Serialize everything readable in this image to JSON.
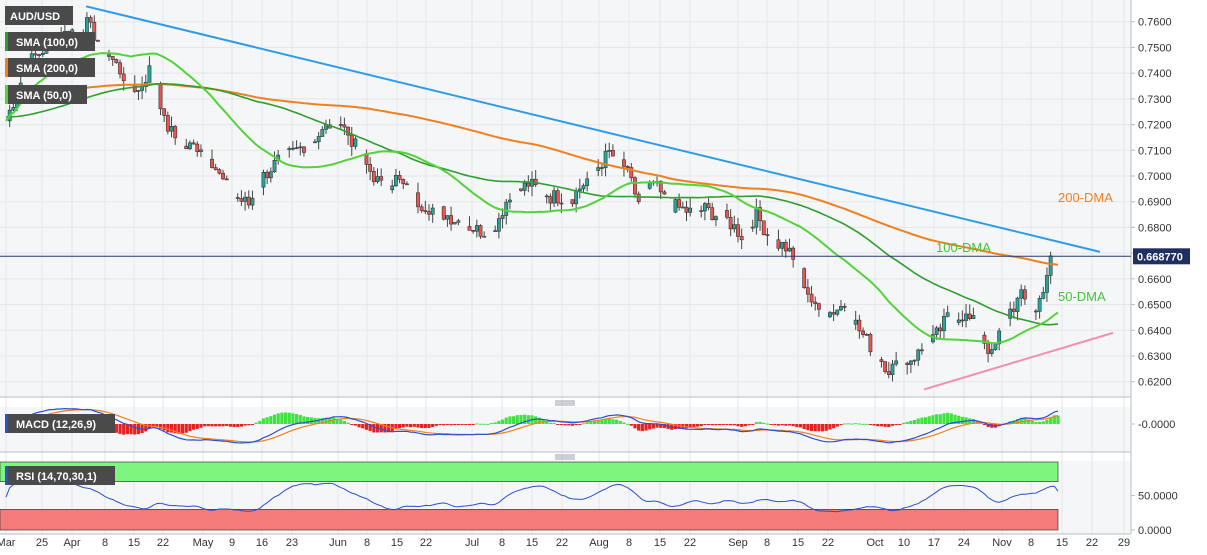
{
  "chart_data": {
    "type": "candlestick",
    "instrument": "AUD/USD",
    "current_price": "0.668770",
    "current_value": 0.66877,
    "x_tick_labels": [
      "Mar",
      "25",
      "Apr",
      "8",
      "15",
      "22",
      "May",
      "9",
      "16",
      "23",
      "Jun",
      "8",
      "15",
      "22",
      "Jul",
      "8",
      "15",
      "22",
      "Aug",
      "8",
      "15",
      "22",
      "Sep",
      "8",
      "15",
      "22",
      "Oct",
      "10",
      "17",
      "24",
      "Nov",
      "8",
      "15",
      "22",
      "29"
    ],
    "price_pane": {
      "ylim": [
        0.616,
        0.7665
      ],
      "y_tick_labels": [
        "0.7600",
        "0.7500",
        "0.7400",
        "0.7300",
        "0.7200",
        "0.7100",
        "0.7000",
        "0.6900",
        "0.6800",
        "0.6700",
        "0.6600",
        "0.6500",
        "0.6400",
        "0.6300",
        "0.6200"
      ],
      "y_ticks": [
        0.76,
        0.75,
        0.74,
        0.73,
        0.72,
        0.71,
        0.7,
        0.69,
        0.68,
        0.67,
        0.66,
        0.65,
        0.64,
        0.63,
        0.62
      ],
      "up_color": "#26a69a",
      "down_color": "#ef5350",
      "indicators": [
        {
          "label": "SMA (100,0)",
          "color": "#2e9e2e"
        },
        {
          "label": "SMA (200,0)",
          "color": "#f07f20"
        },
        {
          "label": "SMA (50,0)",
          "color": "#54d23a"
        }
      ],
      "annotations": [
        {
          "text": "100-DMA",
          "color": "#43c43a"
        },
        {
          "text": "200-DMA",
          "color": "#f07f20"
        },
        {
          "text": "50-DMA",
          "color": "#43c43a"
        }
      ],
      "trendlines": [
        {
          "name": "resistance",
          "color": "#2e9be8",
          "from_date": "Apr 4",
          "to_date": "Nov 22",
          "values": [
            0.766,
            0.6705
          ]
        },
        {
          "name": "support",
          "color": "#f28fb0",
          "from_date": "Oct 13",
          "to_date": "Nov 29",
          "values": [
            0.617,
            0.639
          ]
        }
      ]
    },
    "macd_pane": {
      "label": "MACD (12,26,9)",
      "y_tick_label": "-0.0000",
      "hist_pos_color": "#3fe33f",
      "hist_neg_color": "#e82020",
      "macd_color": "#2a4fd0",
      "signal_color": "#f07f20"
    },
    "rsi_pane": {
      "label": "RSI (14,70,30,1)",
      "y_tick_labels": [
        "50.0000",
        "0.0000"
      ],
      "y_ticks": [
        50,
        0
      ],
      "ylim": [
        0,
        100
      ],
      "overbought": 70,
      "oversold": 30,
      "ob_color": "#7ef57e",
      "os_color": "#f57a7a",
      "line_color": "#2a4fd0",
      "last_value": 66
    }
  }
}
